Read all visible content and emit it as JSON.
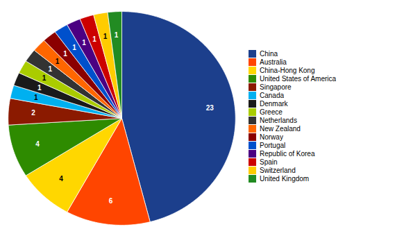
{
  "chart_data": {
    "type": "pie",
    "categories": [
      "China",
      "Australia",
      "China-Hong Kong",
      "United States of America",
      "Singapore",
      "Canada",
      "Denmark",
      "Greece",
      "Netherlands",
      "New Zealand",
      "Norway",
      "Portugal",
      "Republic of Korea",
      "Spain",
      "Switzerland",
      "United Kingdom"
    ],
    "values": [
      23,
      6,
      4,
      4,
      2,
      1,
      1,
      1,
      1,
      1,
      1,
      1,
      1,
      1,
      1,
      1
    ],
    "colors": [
      "#1c3f8c",
      "#ff4500",
      "#ffd700",
      "#2e8b00",
      "#8b1a00",
      "#00b0f0",
      "#1a1a1a",
      "#aacc00",
      "#333333",
      "#ff6600",
      "#8b0000",
      "#0050cc",
      "#4b0082",
      "#cc0000",
      "#ffcc00",
      "#228b22"
    ],
    "data_labels": true,
    "legend": "right"
  }
}
